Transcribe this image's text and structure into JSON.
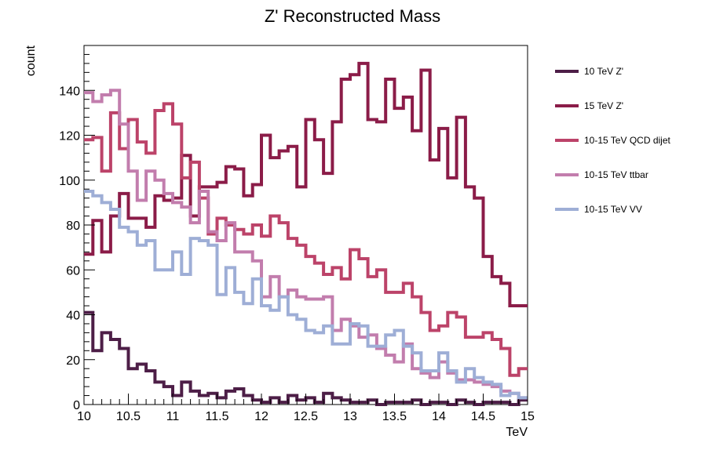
{
  "chart_data": {
    "type": "line",
    "title": "Z' Reconstructed Mass",
    "xlabel": "TeV",
    "ylabel": "count",
    "xlim": [
      10,
      15
    ],
    "ylim": [
      0,
      160
    ],
    "x_ticks": [
      "10",
      "10.5",
      "11",
      "11.5",
      "12",
      "12.5",
      "13",
      "13.5",
      "14",
      "14.5",
      "15"
    ],
    "y_ticks": [
      "0",
      "20",
      "40",
      "60",
      "80",
      "100",
      "120",
      "140"
    ],
    "grid": false,
    "legend_position": "right",
    "series": [
      {
        "name": "10 TeV Z'",
        "color": "#4d1e47",
        "values": [
          41,
          24,
          32,
          29,
          25,
          16,
          18,
          15,
          10,
          8,
          4,
          10,
          6,
          4,
          5,
          3,
          6,
          7,
          4,
          2,
          1,
          3,
          1,
          4,
          2,
          3,
          1,
          5,
          3,
          2,
          1,
          1,
          2,
          0,
          1,
          1,
          1,
          2,
          0,
          1,
          1,
          0,
          2,
          1,
          0,
          1,
          1,
          1,
          0,
          2
        ]
      },
      {
        "name": "15 TeV Z'",
        "color": "#8b1c48",
        "values": [
          67,
          82,
          68,
          84,
          94,
          83,
          83,
          79,
          93,
          91,
          92,
          111,
          84,
          97,
          97,
          99,
          106,
          105,
          93,
          98,
          120,
          110,
          113,
          115,
          97,
          127,
          118,
          103,
          126,
          145,
          147,
          152,
          127,
          126,
          145,
          132,
          137,
          122,
          149,
          109,
          123,
          101,
          128,
          97,
          92,
          66,
          57,
          54,
          44,
          44
        ]
      },
      {
        "name": "10-15 TeV QCD dijet",
        "color": "#bc4369",
        "values": [
          118,
          119,
          104,
          130,
          114,
          127,
          117,
          112,
          131,
          134,
          125,
          101,
          108,
          92,
          76,
          83,
          80,
          78,
          76,
          80,
          75,
          84,
          81,
          74,
          71,
          66,
          63,
          58,
          61,
          56,
          69,
          65,
          57,
          60,
          50,
          50,
          54,
          48,
          41,
          33,
          35,
          41,
          39,
          30,
          30,
          32,
          29,
          25,
          13,
          16
        ]
      },
      {
        "name": "10-15 TeV ttbar",
        "color": "#c27dad",
        "values": [
          139,
          135,
          138,
          140,
          125,
          104,
          91,
          104,
          100,
          94,
          90,
          88,
          81,
          95,
          77,
          73,
          81,
          68,
          68,
          64,
          48,
          57,
          48,
          51,
          48,
          47,
          47,
          48,
          33,
          38,
          35,
          30,
          31,
          25,
          22,
          19,
          27,
          16,
          14,
          12,
          19,
          14,
          11,
          11,
          10,
          9,
          8,
          6,
          5,
          3
        ]
      },
      {
        "name": "10-15 TeV VV",
        "color": "#9eaed6",
        "values": [
          95,
          93,
          90,
          87,
          79,
          77,
          71,
          73,
          60,
          60,
          68,
          58,
          74,
          73,
          71,
          49,
          61,
          50,
          45,
          56,
          44,
          42,
          48,
          40,
          38,
          33,
          32,
          35,
          27,
          27,
          36,
          35,
          26,
          26,
          31,
          33,
          26,
          23,
          15,
          15,
          23,
          15,
          10,
          16,
          12,
          10,
          9,
          4,
          5,
          3
        ]
      }
    ]
  }
}
